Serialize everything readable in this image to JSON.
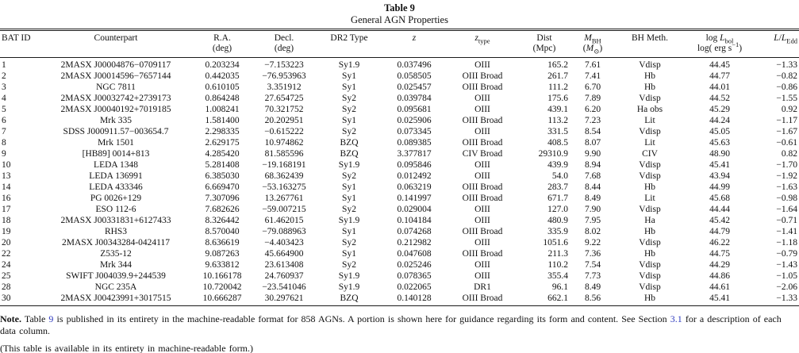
{
  "colors": {
    "text": "#111111",
    "link": "#2f3bbf",
    "rule": "#1a1a1a",
    "background": "#ffffff"
  },
  "caption": {
    "title": "Table 9",
    "subtitle": "General AGN Properties"
  },
  "table": {
    "headers": {
      "bat_id": "BAT ID",
      "counterpart": "Counterpart",
      "ra_line1": "R.A.",
      "ra_line2": "(deg)",
      "decl_line1": "Decl.",
      "decl_line2": "(deg)",
      "dr2_type": "DR2 Type",
      "z": "z",
      "ztype_base": "z",
      "ztype_sub": "type",
      "dist_line1": "Dist",
      "dist_line2": "(Mpc)",
      "mbh_base": "M",
      "mbh_sub": "BH",
      "mbh_unit_open": "(",
      "mbh_unit_base": "M",
      "mbh_unit_sub": "⊙",
      "mbh_unit_close": ")",
      "bh_meth": "BH Meth.",
      "lbol_log": "log ",
      "lbol_base": "L",
      "lbol_sub": "bol",
      "lbol_line2_pre": "log( erg s",
      "lbol_line2_sup": "−1",
      "lbol_line2_close": ")",
      "ledd_num": "L",
      "ledd_slash": "/",
      "ledd_den_base": "L",
      "ledd_den_sub": "Edd"
    },
    "rows": [
      [
        "1",
        "2MASX J00004876−0709117",
        "0.203234",
        "−7.153223",
        "Sy1.9",
        "0.037496",
        "OIII",
        "165.2",
        "7.61",
        "Vdisp",
        "44.45",
        "−1.33"
      ],
      [
        "2",
        "2MASX J00014596−7657144",
        "0.442035",
        "−76.953963",
        "Sy1",
        "0.058505",
        "OIII Broad",
        "261.7",
        "7.41",
        "Hb",
        "44.77",
        "−0.82"
      ],
      [
        "3",
        "NGC 7811",
        "0.610105",
        "3.351912",
        "Sy1",
        "0.025457",
        "OIII Broad",
        "111.2",
        "6.70",
        "Hb",
        "44.01",
        "−0.86"
      ],
      [
        "4",
        "2MASX J00032742+2739173",
        "0.864248",
        "27.654725",
        "Sy2",
        "0.039784",
        "OIII",
        "175.6",
        "7.89",
        "Vdisp",
        "44.52",
        "−1.55"
      ],
      [
        "5",
        "2MASX J00040192+7019185",
        "1.008241",
        "70.321752",
        "Sy2",
        "0.095681",
        "OIII",
        "439.1",
        "6.20",
        "Ha obs",
        "45.29",
        "0.92"
      ],
      [
        "6",
        "Mrk 335",
        "1.581400",
        "20.202951",
        "Sy1",
        "0.025906",
        "OIII Broad",
        "113.2",
        "7.23",
        "Lit",
        "44.24",
        "−1.17"
      ],
      [
        "7",
        "SDSS J000911.57−003654.7",
        "2.298335",
        "−0.615222",
        "Sy2",
        "0.073345",
        "OIII",
        "331.5",
        "8.54",
        "Vdisp",
        "45.05",
        "−1.67"
      ],
      [
        "8",
        "Mrk 1501",
        "2.629175",
        "10.974862",
        "BZQ",
        "0.089385",
        "OIII Broad",
        "408.5",
        "8.07",
        "Lit",
        "45.63",
        "−0.61"
      ],
      [
        "9",
        "[HB89] 0014+813",
        "4.285420",
        "81.585596",
        "BZQ",
        "3.377817",
        "CIV Broad",
        "29310.9",
        "9.90",
        "CIV",
        "48.90",
        "0.82"
      ],
      [
        "10",
        "LEDA 1348",
        "5.281408",
        "−19.168191",
        "Sy1.9",
        "0.095846",
        "OIII",
        "439.9",
        "8.94",
        "Vdisp",
        "45.41",
        "−1.70"
      ],
      [
        "13",
        "LEDA 136991",
        "6.385030",
        "68.362439",
        "Sy2",
        "0.012492",
        "OIII",
        "54.0",
        "7.68",
        "Vdisp",
        "43.94",
        "−1.92"
      ],
      [
        "14",
        "LEDA 433346",
        "6.669470",
        "−53.163275",
        "Sy1",
        "0.063219",
        "OIII Broad",
        "283.7",
        "8.44",
        "Hb",
        "44.99",
        "−1.63"
      ],
      [
        "16",
        "PG 0026+129",
        "7.307096",
        "13.267761",
        "Sy1",
        "0.141997",
        "OIII Broad",
        "671.7",
        "8.49",
        "Lit",
        "45.68",
        "−0.98"
      ],
      [
        "17",
        "ESO 112-6",
        "7.682626",
        "−59.007215",
        "Sy2",
        "0.029004",
        "OIII",
        "127.0",
        "7.90",
        "Vdisp",
        "44.44",
        "−1.64"
      ],
      [
        "18",
        "2MASX J00331831+6127433",
        "8.326442",
        "61.462015",
        "Sy1.9",
        "0.104184",
        "OIII",
        "480.9",
        "7.95",
        "Ha",
        "45.42",
        "−0.71"
      ],
      [
        "19",
        "RHS3",
        "8.570040",
        "−79.088963",
        "Sy1",
        "0.074268",
        "OIII Broad",
        "335.9",
        "8.02",
        "Hb",
        "44.79",
        "−1.41"
      ],
      [
        "20",
        "2MASX J00343284-0424117",
        "8.636619",
        "−4.403423",
        "Sy2",
        "0.212982",
        "OIII",
        "1051.6",
        "9.22",
        "Vdisp",
        "46.22",
        "−1.18"
      ],
      [
        "22",
        "Z535-12",
        "9.087263",
        "45.664900",
        "Sy1",
        "0.047608",
        "OIII Broad",
        "211.3",
        "7.36",
        "Hb",
        "44.75",
        "−0.79"
      ],
      [
        "24",
        "Mrk 344",
        "9.633812",
        "23.613408",
        "Sy2",
        "0.025246",
        "OIII",
        "110.2",
        "7.54",
        "Vdisp",
        "44.29",
        "−1.43"
      ],
      [
        "25",
        "SWIFT J004039.9+244539",
        "10.166178",
        "24.760937",
        "Sy1.9",
        "0.078365",
        "OIII",
        "355.4",
        "7.73",
        "Vdisp",
        "44.86",
        "−1.05"
      ],
      [
        "28",
        "NGC 235A",
        "10.720042",
        "−23.541046",
        "Sy1.9",
        "0.022065",
        "DR1",
        "96.1",
        "8.49",
        "Vdisp",
        "44.61",
        "−2.06"
      ],
      [
        "30",
        "2MASX J00423991+3017515",
        "10.666287",
        "30.297621",
        "BZQ",
        "0.140128",
        "OIII Broad",
        "662.1",
        "8.56",
        "Hb",
        "45.41",
        "−1.33"
      ]
    ]
  },
  "note": {
    "label": "Note.",
    "part1": " Table ",
    "link1": "9",
    "part2": " is published in its entirety in the machine-readable format for 858 AGNs. A portion is shown here for guidance regarding its form and content. See Section ",
    "link2": "3.1",
    "part3": " for a description of each data column.",
    "line2": "(This table is available in its entirety in machine-readable form.)"
  }
}
